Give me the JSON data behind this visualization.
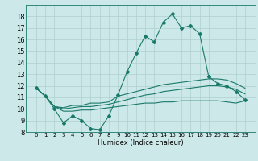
{
  "title": "",
  "xlabel": "Humidex (Indice chaleur)",
  "x": [
    0,
    1,
    2,
    3,
    4,
    5,
    6,
    7,
    8,
    9,
    10,
    11,
    12,
    13,
    14,
    15,
    16,
    17,
    18,
    19,
    20,
    21,
    22,
    23
  ],
  "line1": [
    11.8,
    11.1,
    10.0,
    8.8,
    9.4,
    9.0,
    8.3,
    8.2,
    9.4,
    11.2,
    13.2,
    14.8,
    16.3,
    15.8,
    17.5,
    18.2,
    17.0,
    17.2,
    16.5,
    12.8,
    12.2,
    12.0,
    11.5,
    10.8
  ],
  "line2": [
    11.8,
    11.1,
    10.2,
    10.1,
    10.3,
    10.3,
    10.5,
    10.5,
    10.6,
    11.1,
    11.3,
    11.5,
    11.7,
    11.9,
    12.1,
    12.2,
    12.3,
    12.4,
    12.5,
    12.6,
    12.6,
    12.5,
    12.2,
    11.8
  ],
  "line3": [
    11.8,
    11.1,
    10.2,
    10.0,
    10.1,
    10.2,
    10.2,
    10.3,
    10.4,
    10.6,
    10.8,
    11.0,
    11.2,
    11.3,
    11.5,
    11.6,
    11.7,
    11.8,
    11.9,
    12.0,
    12.0,
    11.9,
    11.7,
    11.3
  ],
  "line4": [
    11.8,
    11.1,
    10.2,
    9.8,
    9.8,
    9.9,
    9.9,
    10.0,
    10.1,
    10.2,
    10.3,
    10.4,
    10.5,
    10.5,
    10.6,
    10.6,
    10.7,
    10.7,
    10.7,
    10.7,
    10.7,
    10.6,
    10.5,
    10.7
  ],
  "ylim": [
    8,
    19
  ],
  "yticks": [
    8,
    9,
    10,
    11,
    12,
    13,
    14,
    15,
    16,
    17,
    18
  ],
  "line_color": "#1a7a6a",
  "bg_color": "#cce8e8",
  "grid_color": "#aed0d0",
  "tick_fontsize": 5,
  "xlabel_fontsize": 6,
  "marker_size": 2.0,
  "linewidth": 0.8
}
